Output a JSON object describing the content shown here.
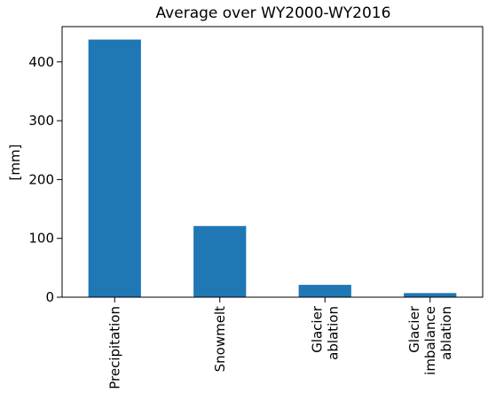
{
  "chart_data": {
    "type": "bar",
    "title": "Average over WY2000-WY2016",
    "xlabel": "",
    "ylabel": "[mm]",
    "categories": [
      [
        "Precipitation"
      ],
      [
        "Snowmelt"
      ],
      [
        "Glacier",
        "ablation"
      ],
      [
        "Glacier",
        "imbalance",
        "ablation"
      ]
    ],
    "values": [
      438,
      121,
      21,
      7
    ],
    "ylim": [
      0,
      460
    ],
    "yticks": [
      0,
      100,
      200,
      300,
      400
    ],
    "bar_color": "#1f77b4",
    "grid": false,
    "legend": "none"
  }
}
